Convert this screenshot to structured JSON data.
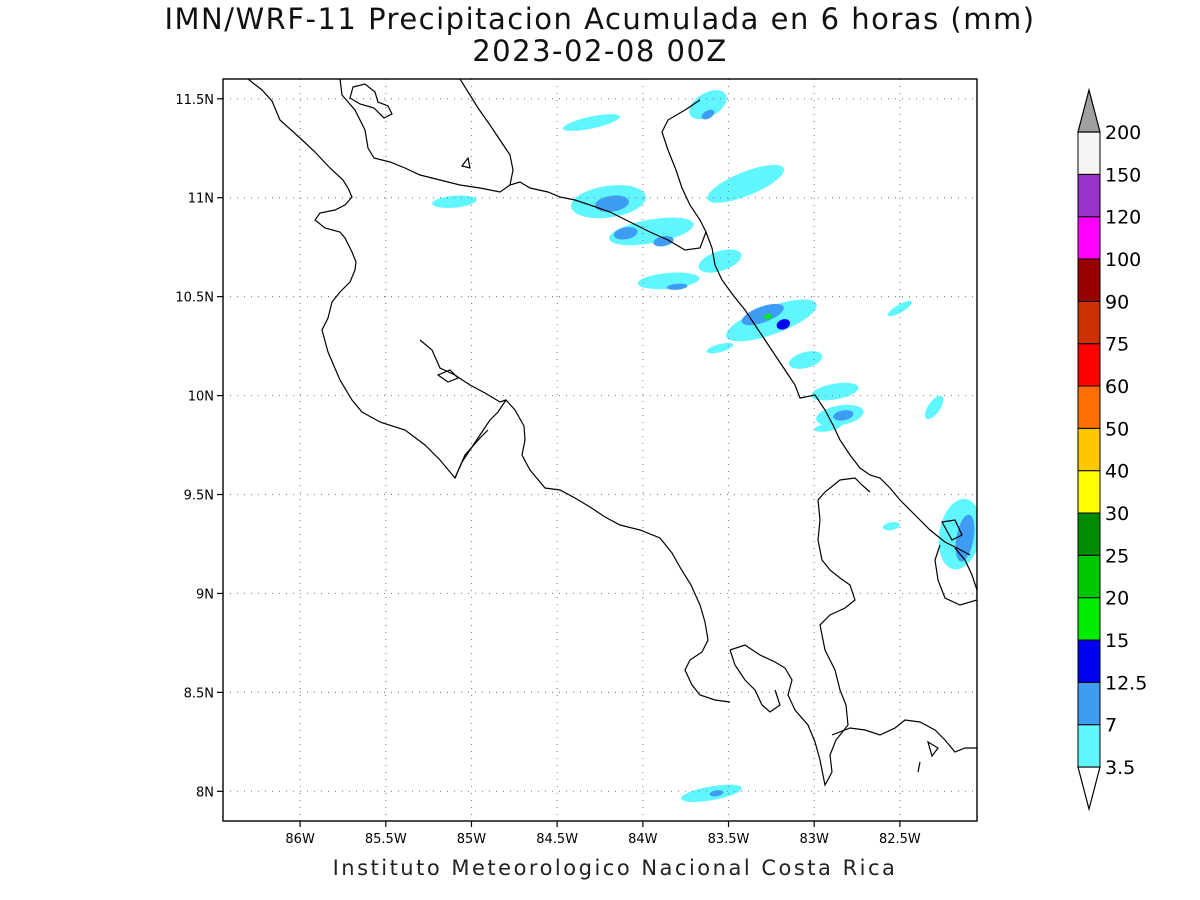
{
  "title": "IMN/WRF-11 Precipitacion Acumulada en 6 horas (mm)",
  "subtitle": "2023-02-08 00Z",
  "footer": "Instituto Meteorologico Nacional Costa Rica",
  "map": {
    "lon_range": [
      -86.45,
      -82.05
    ],
    "lat_range": [
      7.85,
      11.6
    ],
    "x_ticks": [
      {
        "value": -86.0,
        "label": "86W"
      },
      {
        "value": -85.5,
        "label": "85.5W"
      },
      {
        "value": -85.0,
        "label": "85W"
      },
      {
        "value": -84.5,
        "label": "84.5W"
      },
      {
        "value": -84.0,
        "label": "84W"
      },
      {
        "value": -83.5,
        "label": "83.5W"
      },
      {
        "value": -83.0,
        "label": "83W"
      },
      {
        "value": -82.5,
        "label": "82.5W"
      }
    ],
    "y_ticks": [
      {
        "value": 11.5,
        "label": "11.5N"
      },
      {
        "value": 11.0,
        "label": "11N"
      },
      {
        "value": 10.5,
        "label": "10.5N"
      },
      {
        "value": 10.0,
        "label": "10N"
      },
      {
        "value": 9.5,
        "label": "9.5N"
      },
      {
        "value": 9.0,
        "label": "9N"
      },
      {
        "value": 8.5,
        "label": "8.5N"
      },
      {
        "value": 8.0,
        "label": "8N"
      }
    ],
    "grid": "dotted"
  },
  "colorbar": {
    "levels": [
      {
        "label": "3.5",
        "color": "#5ff6ff"
      },
      {
        "label": "7",
        "color": "#3f9cf5"
      },
      {
        "label": "12.5",
        "color": "#0000f5"
      },
      {
        "label": "15",
        "color": "#00ee00"
      },
      {
        "label": "20",
        "color": "#00c800"
      },
      {
        "label": "25",
        "color": "#008c00"
      },
      {
        "label": "30",
        "color": "#ffff00"
      },
      {
        "label": "40",
        "color": "#ffc800"
      },
      {
        "label": "50",
        "color": "#ff6e00"
      },
      {
        "label": "60",
        "color": "#ff0000"
      },
      {
        "label": "75",
        "color": "#cc3200"
      },
      {
        "label": "90",
        "color": "#990000"
      },
      {
        "label": "100",
        "color": "#ff00ff"
      },
      {
        "label": "120",
        "color": "#9932cc"
      },
      {
        "label": "150",
        "color": "#f5f5f5"
      },
      {
        "label": "200",
        "color": "#a0a0a0"
      }
    ]
  },
  "precip_cells": [
    {
      "lon": -83.62,
      "lat": 11.47,
      "rx": 0.12,
      "ry": 0.06,
      "rot": -30,
      "color": "#5ff6ff"
    },
    {
      "lon": -83.62,
      "lat": 11.42,
      "rx": 0.04,
      "ry": 0.02,
      "rot": -30,
      "color": "#3f9cf5"
    },
    {
      "lon": -84.3,
      "lat": 11.38,
      "rx": 0.17,
      "ry": 0.03,
      "rot": -12,
      "color": "#5ff6ff"
    },
    {
      "lon": -83.4,
      "lat": 11.07,
      "rx": 0.24,
      "ry": 0.06,
      "rot": -22,
      "color": "#5ff6ff"
    },
    {
      "lon": -84.2,
      "lat": 10.98,
      "rx": 0.22,
      "ry": 0.08,
      "rot": -8,
      "color": "#5ff6ff"
    },
    {
      "lon": -84.18,
      "lat": 10.97,
      "rx": 0.1,
      "ry": 0.04,
      "rot": -8,
      "color": "#3f9cf5"
    },
    {
      "lon": -85.1,
      "lat": 10.98,
      "rx": 0.13,
      "ry": 0.03,
      "rot": -5,
      "color": "#5ff6ff"
    },
    {
      "lon": -83.95,
      "lat": 10.83,
      "rx": 0.25,
      "ry": 0.06,
      "rot": -10,
      "color": "#5ff6ff"
    },
    {
      "lon": -84.1,
      "lat": 10.82,
      "rx": 0.07,
      "ry": 0.03,
      "rot": -10,
      "color": "#3f9cf5"
    },
    {
      "lon": -83.88,
      "lat": 10.78,
      "rx": 0.06,
      "ry": 0.025,
      "rot": -10,
      "color": "#3f9cf5"
    },
    {
      "lon": -83.55,
      "lat": 10.68,
      "rx": 0.13,
      "ry": 0.05,
      "rot": -18,
      "color": "#5ff6ff"
    },
    {
      "lon": -83.85,
      "lat": 10.58,
      "rx": 0.18,
      "ry": 0.04,
      "rot": -5,
      "color": "#5ff6ff"
    },
    {
      "lon": -83.8,
      "lat": 10.55,
      "rx": 0.06,
      "ry": 0.015,
      "rot": -5,
      "color": "#3f9cf5"
    },
    {
      "lon": -83.25,
      "lat": 10.38,
      "rx": 0.28,
      "ry": 0.07,
      "rot": -20,
      "color": "#5ff6ff"
    },
    {
      "lon": -83.3,
      "lat": 10.41,
      "rx": 0.13,
      "ry": 0.04,
      "rot": -20,
      "color": "#3f9cf5"
    },
    {
      "lon": -83.18,
      "lat": 10.36,
      "rx": 0.04,
      "ry": 0.025,
      "rot": -20,
      "color": "#0000f5"
    },
    {
      "lon": -83.27,
      "lat": 10.4,
      "rx": 0.025,
      "ry": 0.012,
      "rot": -10,
      "color": "#00ee00"
    },
    {
      "lon": -83.05,
      "lat": 10.18,
      "rx": 0.1,
      "ry": 0.04,
      "rot": -15,
      "color": "#5ff6ff"
    },
    {
      "lon": -82.88,
      "lat": 10.02,
      "rx": 0.14,
      "ry": 0.04,
      "rot": -10,
      "color": "#5ff6ff"
    },
    {
      "lon": -82.85,
      "lat": 9.9,
      "rx": 0.14,
      "ry": 0.05,
      "rot": -10,
      "color": "#5ff6ff"
    },
    {
      "lon": -82.83,
      "lat": 9.9,
      "rx": 0.06,
      "ry": 0.025,
      "rot": -10,
      "color": "#3f9cf5"
    },
    {
      "lon": -82.3,
      "lat": 9.94,
      "rx": 0.08,
      "ry": 0.03,
      "rot": -55,
      "color": "#5ff6ff"
    },
    {
      "lon": -82.5,
      "lat": 10.44,
      "rx": 0.08,
      "ry": 0.02,
      "rot": -30,
      "color": "#5ff6ff"
    },
    {
      "lon": -83.55,
      "lat": 10.24,
      "rx": 0.08,
      "ry": 0.02,
      "rot": -15,
      "color": "#5ff6ff"
    },
    {
      "lon": -82.15,
      "lat": 9.3,
      "rx": 0.12,
      "ry": 0.18,
      "rot": 10,
      "color": "#5ff6ff"
    },
    {
      "lon": -82.12,
      "lat": 9.28,
      "rx": 0.05,
      "ry": 0.12,
      "rot": 10,
      "color": "#3f9cf5"
    },
    {
      "lon": -82.55,
      "lat": 9.34,
      "rx": 0.05,
      "ry": 0.02,
      "rot": -10,
      "color": "#5ff6ff"
    },
    {
      "lon": -83.6,
      "lat": 7.99,
      "rx": 0.18,
      "ry": 0.035,
      "rot": -10,
      "color": "#5ff6ff"
    },
    {
      "lon": -83.57,
      "lat": 7.99,
      "rx": 0.04,
      "ry": 0.015,
      "rot": -10,
      "color": "#3f9cf5"
    },
    {
      "lon": -82.92,
      "lat": 9.84,
      "rx": 0.08,
      "ry": 0.02,
      "rot": -10,
      "color": "#5ff6ff"
    }
  ]
}
